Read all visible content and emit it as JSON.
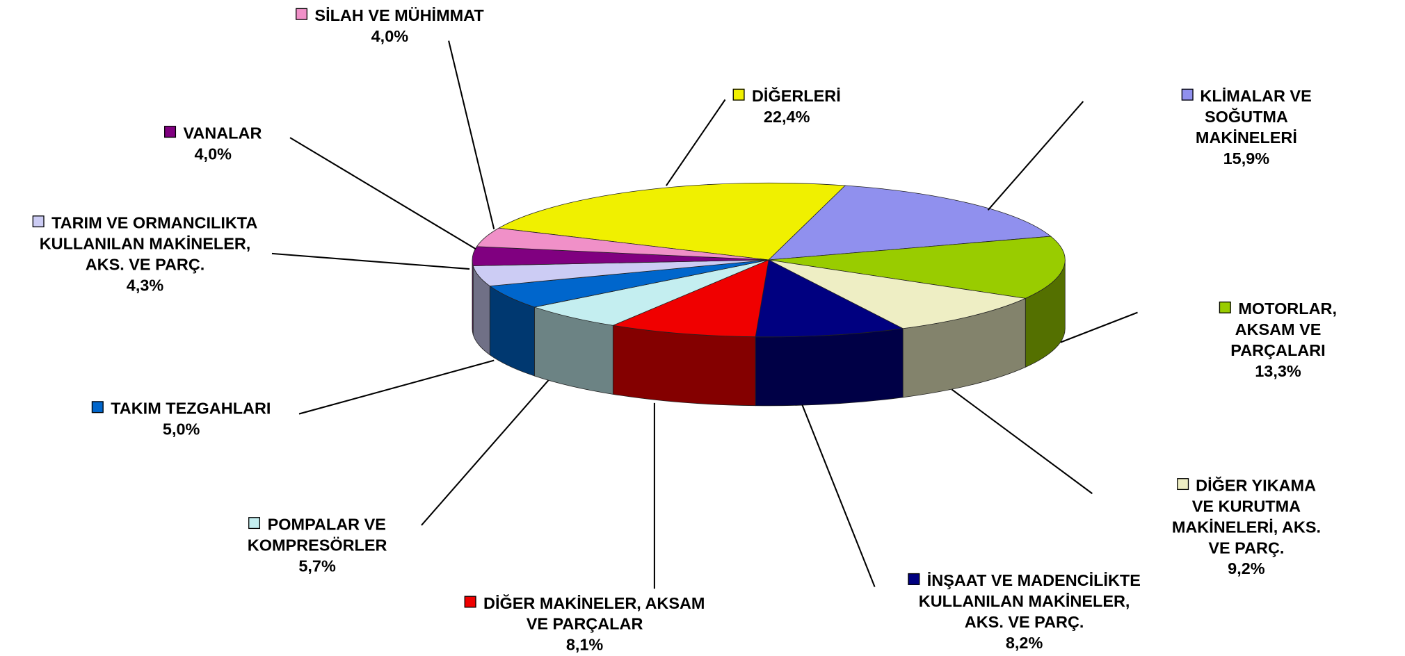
{
  "chart_data": {
    "type": "pie3d",
    "categories": [
      "DİĞERLERİ",
      "KLİMALAR VE SOĞUTMA\nMAKİNELERİ",
      "MOTORLAR, AKSAM VE\nPARÇALARI",
      "DİĞER YIKAMA VE KURUTMA\nMAKİNELERİ, AKS. VE PARÇ.",
      "İNŞAAT VE MADENCİLİKTE\nKULLANILAN MAKİNELER,\nAKS. VE PARÇ.",
      "DİĞER MAKİNELER, AKSAM\nVE PARÇALAR",
      "POMPALAR VE\nKOMPRESÖRLER",
      "TAKIM TEZGAHLARI",
      "TARIM VE ORMANCILIKTA\nKULLANILAN MAKİNELER,\nAKS. VE PARÇ.",
      "VANALAR",
      "SİLAH VE MÜHİMMAT"
    ],
    "values": [
      22.4,
      15.9,
      13.3,
      9.2,
      8.2,
      8.1,
      5.7,
      5.0,
      4.3,
      4.0,
      4.0
    ],
    "value_labels": [
      "22,4%",
      "15,9%",
      "13,3%",
      "9,2%",
      "8,2%",
      "8,1%",
      "5,7%",
      "5,0%",
      "4,3%",
      "4,0%",
      "4,0%"
    ],
    "colors": [
      "#f0f000",
      "#9090ee",
      "#99cc00",
      "#eeeec4",
      "#000080",
      "#f00000",
      "#c4eef0",
      "#0066cc",
      "#ccccf4",
      "#800080",
      "#f090c8"
    ]
  }
}
